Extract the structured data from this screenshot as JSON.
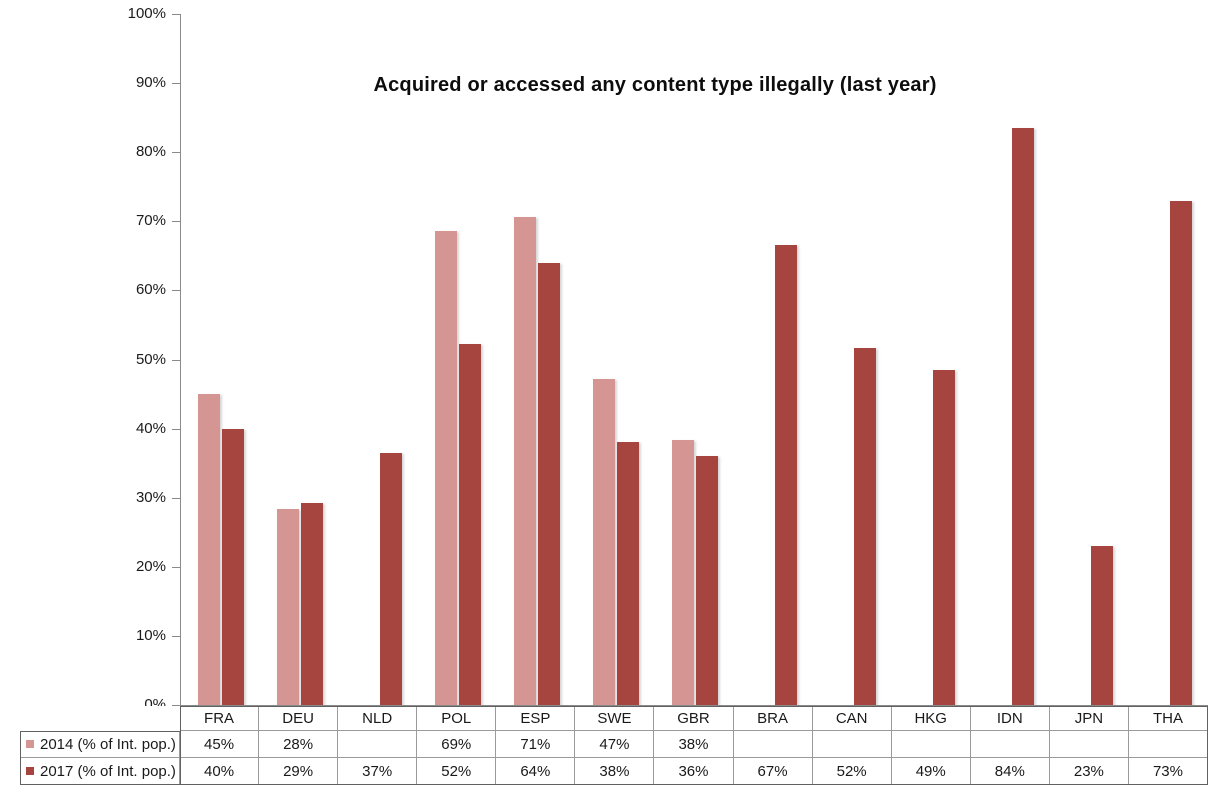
{
  "chart_data": {
    "type": "bar",
    "title": "Acquired or accessed any content type illegally (last year)",
    "categories": [
      "FRA",
      "DEU",
      "NLD",
      "POL",
      "ESP",
      "SWE",
      "GBR",
      "BRA",
      "CAN",
      "HKG",
      "IDN",
      "JPN",
      "THA"
    ],
    "series": [
      {
        "year": "2014",
        "name": "2014 (% of Int. pop.)",
        "color": "#d59693",
        "values": [
          45,
          28.3,
          null,
          68.6,
          70.6,
          47.2,
          38.4,
          null,
          null,
          null,
          null,
          null,
          null
        ],
        "table_labels": [
          "45%",
          "28%",
          "",
          "69%",
          "71%",
          "47%",
          "38%",
          "",
          "",
          "",
          "",
          "",
          ""
        ]
      },
      {
        "year": "2017",
        "name": "2017 (% of Int. pop.)",
        "color": "#a64540",
        "values": [
          40,
          29.2,
          36.5,
          52.3,
          64,
          38,
          36,
          66.6,
          51.7,
          48.5,
          83.5,
          23,
          73
        ],
        "table_labels": [
          "40%",
          "29%",
          "37%",
          "52%",
          "64%",
          "38%",
          "36%",
          "67%",
          "52%",
          "49%",
          "84%",
          "23%",
          "73%"
        ]
      }
    ],
    "xlabel": "",
    "ylabel": "",
    "ylim": [
      0,
      100
    ],
    "ytick_step": 10,
    "ytick_labels": [
      "0%",
      "10%",
      "20%",
      "30%",
      "40%",
      "50%",
      "60%",
      "70%",
      "80%",
      "90%",
      "100%"
    ],
    "grid": false,
    "legend_position": "bottom-data-table"
  }
}
